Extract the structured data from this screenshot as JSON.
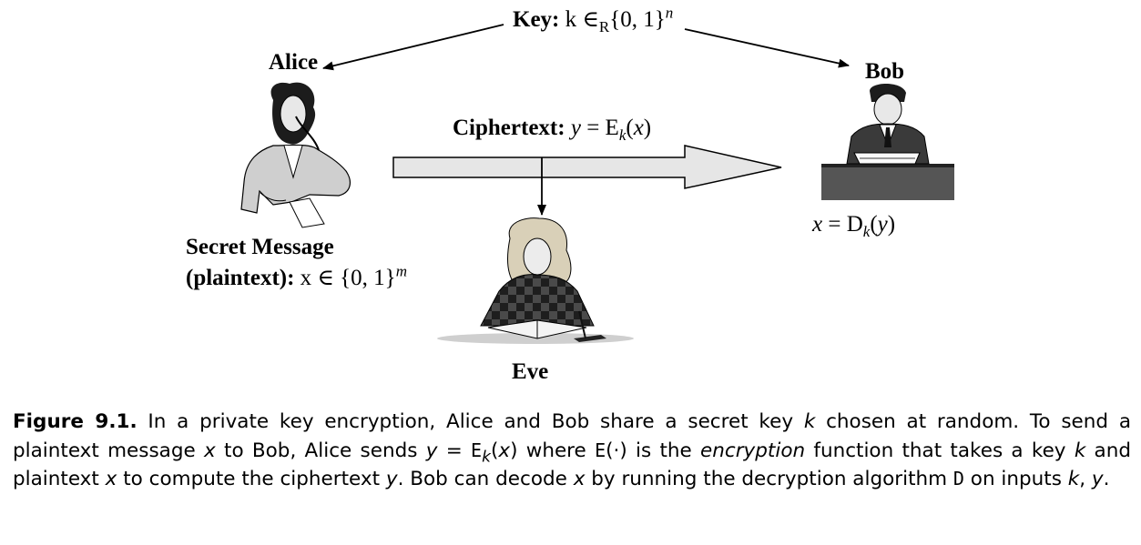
{
  "key_label": {
    "bold": "Key:",
    "math_k": "k",
    "math_in": " ∈",
    "math_sub": "R",
    "math_set": "{0, 1}",
    "math_sup": "n"
  },
  "alice": {
    "name": "Alice"
  },
  "bob": {
    "name": "Bob",
    "decrypt": {
      "x": "x",
      "eq": " = D",
      "sub": "k",
      "arg_open": "(",
      "arg": "y",
      "arg_close": ")"
    }
  },
  "eve": {
    "name": "Eve"
  },
  "ciphertext": {
    "bold": "Ciphertext:",
    "y": "y",
    "eq": " = E",
    "sub": "k",
    "arg_open": "(",
    "arg": "x",
    "arg_close": ")"
  },
  "message": {
    "line1": "Secret Message",
    "line2_bold": "(plaintext):",
    "line2_math": " x ∈ {0, 1}",
    "line2_sup": "m"
  },
  "caption": {
    "fig": "Figure 9.1.",
    "t1": " In a private key encryption, Alice and Bob share a secret key ",
    "k": "k",
    "t2": " chosen at random. To send a plaintext message ",
    "x1": "x",
    "t3": " to Bob, Alice sends ",
    "y1": "y",
    "t4": " = ",
    "E1": "E",
    "k2": "k",
    "t5": "(",
    "x2": "x",
    "t6": ") where ",
    "E2": "E",
    "t7": "(·) is the ",
    "enc": "encryption",
    "t8": " function that takes a key ",
    "k3": "k",
    "t9": " and plaintext ",
    "x3": "x",
    "t10": " to compute the ciphertext ",
    "y2": "y",
    "t11": ". Bob can decode ",
    "x4": "x",
    "t12": " by running the decryption algorithm ",
    "D": "D",
    "t13": " on inputs ",
    "k4": "k",
    "t14": ", ",
    "y3": "y",
    "t15": "."
  },
  "colors": {
    "arrow_fill": "#e6e6e6",
    "ink": "#000000",
    "desk": "#555555",
    "eve_dress": "#3a3a3a",
    "hair": "#d9d0b8"
  }
}
